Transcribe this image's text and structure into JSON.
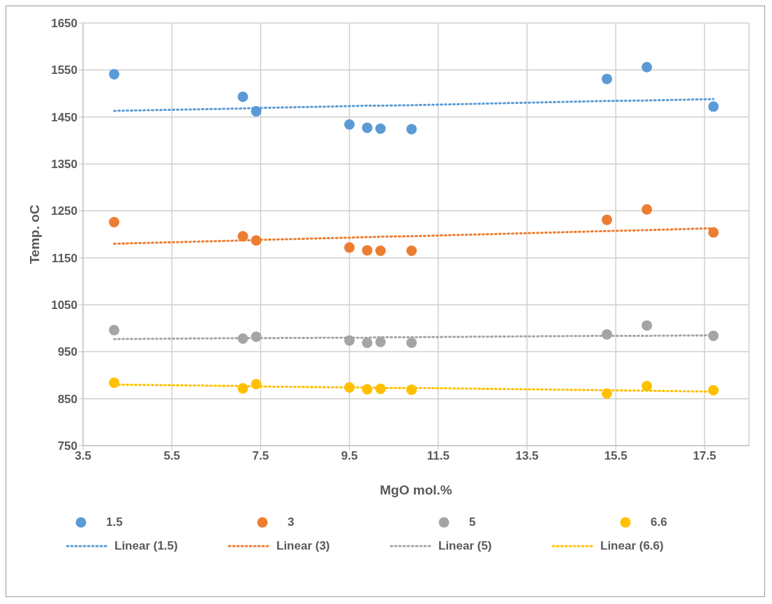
{
  "chart_data": {
    "type": "scatter",
    "xlabel": "MgO mol.%",
    "ylabel": "Temp. oC",
    "x": [
      4.2,
      7.1,
      7.4,
      9.5,
      9.9,
      10.2,
      10.9,
      15.3,
      16.2,
      17.7
    ],
    "xlim": [
      3.5,
      18.5
    ],
    "xticks": [
      3.5,
      5.5,
      7.5,
      9.5,
      11.5,
      13.5,
      15.5,
      17.5
    ],
    "ylim": [
      750,
      1650
    ],
    "yticks": [
      750,
      850,
      950,
      1050,
      1150,
      1250,
      1350,
      1450,
      1550,
      1650
    ],
    "grid": true,
    "legend": "bottom",
    "marker": "circle",
    "series": [
      {
        "name": "1.5",
        "color": "#5b9bd5",
        "values": [
          1541,
          1493,
          1462,
          1434,
          1427,
          1425,
          1424,
          1531,
          1556,
          1472
        ]
      },
      {
        "name": "3",
        "color": "#ed7d31",
        "values": [
          1226,
          1196,
          1187,
          1172,
          1166,
          1165,
          1165,
          1231,
          1253,
          1204
        ]
      },
      {
        "name": "5",
        "color": "#a5a5a5",
        "values": [
          996,
          978,
          982,
          974,
          969,
          971,
          969,
          987,
          1006,
          984
        ]
      },
      {
        "name": "6.6",
        "color": "#ffc000",
        "values": [
          884,
          872,
          881,
          874,
          870,
          871,
          869,
          861,
          877,
          868
        ]
      },
      {
        "name": "Linear (1.5)",
        "type": "line",
        "line_style": "dotted",
        "marker": "none",
        "color": "#5b9bd5",
        "values": [
          1463,
          1468,
          1469,
          1473,
          1474,
          1474,
          1475,
          1484,
          1485,
          1488
        ]
      },
      {
        "name": "Linear (3)",
        "type": "line",
        "line_style": "dotted",
        "marker": "none",
        "color": "#ed7d31",
        "values": [
          1180,
          1187,
          1188,
          1193,
          1194,
          1195,
          1196,
          1207,
          1209,
          1213
        ]
      },
      {
        "name": "Linear (5)",
        "type": "line",
        "line_style": "dotted",
        "marker": "none",
        "color": "#a5a5a5",
        "values": [
          977,
          979,
          979,
          980,
          980,
          981,
          981,
          984,
          984,
          985
        ]
      },
      {
        "name": "Linear (6.6)",
        "type": "line",
        "line_style": "dotted",
        "marker": "none",
        "color": "#ffc000",
        "values": [
          880,
          877,
          876,
          874,
          874,
          873,
          873,
          868,
          867,
          865
        ]
      }
    ]
  }
}
